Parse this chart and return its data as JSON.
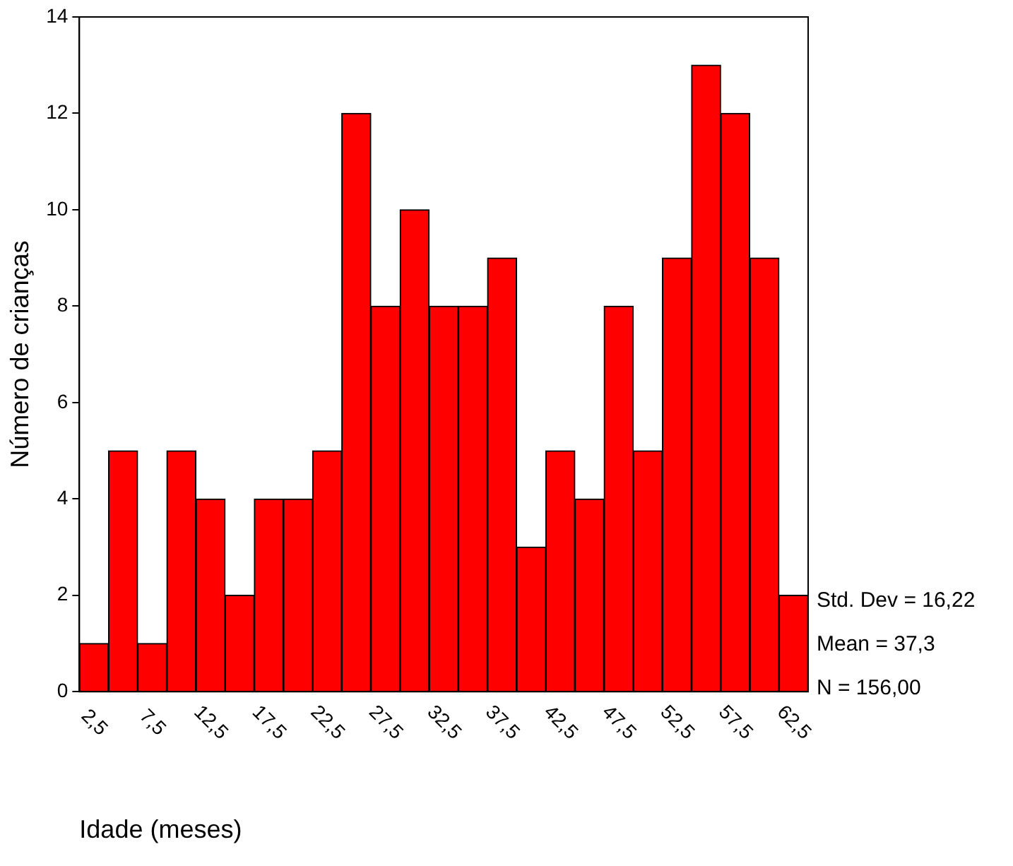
{
  "chart_data": {
    "type": "histogram",
    "xlabel": "Idade (meses)",
    "ylabel": "Número de crianças",
    "bins": [
      1.25,
      3.75,
      6.25,
      8.75,
      11.25,
      13.75,
      16.25,
      18.75,
      21.25,
      23.75,
      26.25,
      28.75,
      31.25,
      33.75,
      36.25,
      38.75,
      41.25,
      43.75,
      46.25,
      48.75,
      51.25,
      53.75,
      56.25,
      58.75,
      61.25,
      63.75
    ],
    "values": [
      1,
      5,
      1,
      5,
      4,
      2,
      4,
      4,
      5,
      12,
      8,
      10,
      8,
      8,
      9,
      3,
      5,
      4,
      8,
      5,
      9,
      13,
      12,
      9,
      2
    ],
    "color": "#ff0000",
    "xlim": [
      1.25,
      63.75
    ],
    "xticks": [
      {
        "value": 2.5,
        "label": "2,5"
      },
      {
        "value": 7.5,
        "label": "7,5"
      },
      {
        "value": 12.5,
        "label": "12,5"
      },
      {
        "value": 17.5,
        "label": "17,5"
      },
      {
        "value": 22.5,
        "label": "22,5"
      },
      {
        "value": 27.5,
        "label": "27,5"
      },
      {
        "value": 32.5,
        "label": "32,5"
      },
      {
        "value": 37.5,
        "label": "37,5"
      },
      {
        "value": 42.5,
        "label": "42,5"
      },
      {
        "value": 47.5,
        "label": "47,5"
      },
      {
        "value": 52.5,
        "label": "52,5"
      },
      {
        "value": 57.5,
        "label": "57,5"
      },
      {
        "value": 62.5,
        "label": "62,5"
      }
    ],
    "ylim": [
      0,
      14
    ],
    "yticks": [
      0,
      2,
      4,
      6,
      8,
      10,
      12,
      14
    ],
    "annotations": [
      "Std. Dev = 16,22",
      "Mean = 37,3",
      "N = 156,00"
    ],
    "grid": false,
    "legend": false
  }
}
